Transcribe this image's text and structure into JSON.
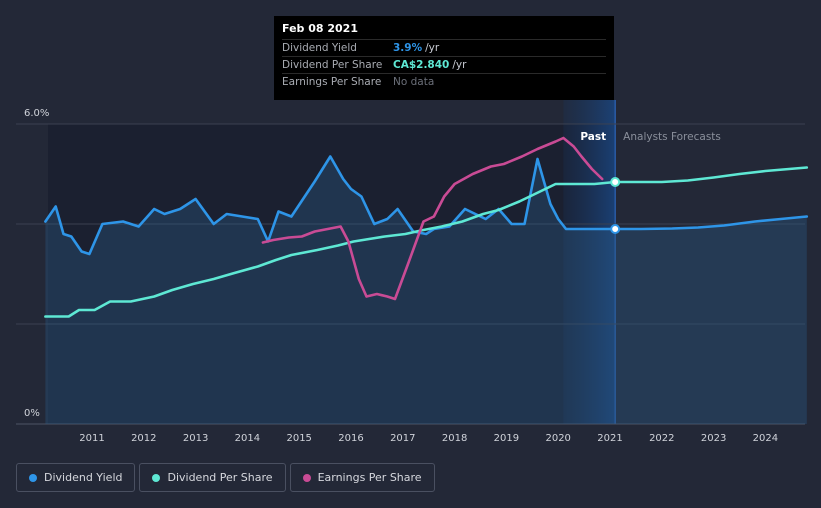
{
  "tooltip": {
    "date": "Feb 08 2021",
    "rows": [
      {
        "label": "Dividend Yield",
        "value": "3.9%",
        "unit": "/yr",
        "color": "#2e95e8"
      },
      {
        "label": "Dividend Per Share",
        "value": "CA$2.840",
        "unit": "/yr",
        "color": "#5ee8d4"
      },
      {
        "label": "Earnings Per Share",
        "value": "No data",
        "unit": "",
        "color": "#6b6f79"
      }
    ]
  },
  "region_labels": {
    "past": "Past",
    "forecast": "Analysts Forecasts"
  },
  "legend": [
    {
      "label": "Dividend Yield",
      "color": "#2e95e8"
    },
    {
      "label": "Dividend Per Share",
      "color": "#5ee8d4"
    },
    {
      "label": "Earnings Per Share",
      "color": "#c94b95"
    }
  ],
  "chart_data": {
    "type": "line",
    "y_tick_labels": [
      "6.0%",
      "0%"
    ],
    "ylim_pct": [
      0,
      6
    ],
    "xlim": [
      2010.1,
      2024.8
    ],
    "x_tick_labels": [
      "2011",
      "2012",
      "2013",
      "2014",
      "2015",
      "2016",
      "2017",
      "2018",
      "2019",
      "2020",
      "2021",
      "2022",
      "2023",
      "2024"
    ],
    "grid": true,
    "current_date": 2021.1,
    "past_highlight_start": 2020.1,
    "series": [
      {
        "name": "Dividend Yield",
        "color": "#2e95e8",
        "unit": "percent",
        "x": [
          2010.1,
          2010.3,
          2010.45,
          2010.6,
          2010.8,
          2010.95,
          2011.2,
          2011.6,
          2011.9,
          2012.2,
          2012.4,
          2012.7,
          2013.0,
          2013.35,
          2013.6,
          2013.9,
          2014.2,
          2014.4,
          2014.6,
          2014.85,
          2015.3,
          2015.6,
          2015.85,
          2016.0,
          2016.2,
          2016.45,
          2016.7,
          2016.9,
          2017.2,
          2017.45,
          2017.6,
          2017.9,
          2018.2,
          2018.6,
          2018.85,
          2019.1,
          2019.35,
          2019.6,
          2019.85,
          2020.0,
          2020.15,
          2020.35,
          2020.6,
          2020.85,
          2021.1,
          2021.6,
          2022.2,
          2022.7,
          2023.2,
          2023.8,
          2024.3,
          2024.8
        ],
        "values": [
          4.05,
          4.35,
          3.8,
          3.75,
          3.45,
          3.4,
          4.0,
          4.05,
          3.95,
          4.3,
          4.2,
          4.3,
          4.5,
          4.0,
          4.2,
          4.15,
          4.1,
          3.65,
          4.25,
          4.15,
          4.85,
          5.35,
          4.9,
          4.7,
          4.55,
          4.0,
          4.1,
          4.3,
          3.85,
          3.8,
          3.9,
          3.95,
          4.3,
          4.1,
          4.3,
          4.0,
          4.0,
          5.3,
          4.4,
          4.1,
          3.9,
          3.9,
          3.9,
          3.9,
          3.9,
          3.9,
          3.91,
          3.93,
          3.97,
          4.05,
          4.1,
          4.15
        ]
      },
      {
        "name": "Dividend Per Share",
        "color": "#5ee8d4",
        "unit": "relative",
        "x": [
          2010.1,
          2010.55,
          2010.75,
          2011.05,
          2011.35,
          2011.75,
          2012.2,
          2012.55,
          2012.95,
          2013.35,
          2013.75,
          2014.2,
          2014.55,
          2014.85,
          2015.35,
          2015.75,
          2016.05,
          2016.35,
          2016.65,
          2017.05,
          2017.35,
          2017.75,
          2018.15,
          2018.55,
          2018.85,
          2019.25,
          2019.55,
          2019.95,
          2020.3,
          2020.7,
          2021.1,
          2021.6,
          2022.0,
          2022.5,
          2023.0,
          2023.5,
          2024.0,
          2024.8
        ],
        "values": [
          2.15,
          2.15,
          2.28,
          2.28,
          2.45,
          2.45,
          2.55,
          2.68,
          2.8,
          2.9,
          3.02,
          3.15,
          3.28,
          3.38,
          3.48,
          3.57,
          3.65,
          3.7,
          3.75,
          3.8,
          3.87,
          3.95,
          4.05,
          4.2,
          4.28,
          4.45,
          4.6,
          4.8,
          4.8,
          4.8,
          4.84,
          4.84,
          4.84,
          4.87,
          4.93,
          5.0,
          5.06,
          5.13
        ]
      },
      {
        "name": "Earnings Per Share",
        "color": "#c94b95",
        "unit": "relative",
        "x": [
          2014.3,
          2014.5,
          2014.8,
          2015.05,
          2015.3,
          2015.55,
          2015.8,
          2015.95,
          2016.15,
          2016.3,
          2016.5,
          2016.7,
          2016.85,
          2017.1,
          2017.4,
          2017.6,
          2017.8,
          2018.0,
          2018.35,
          2018.7,
          2018.95,
          2019.3,
          2019.6,
          2019.95,
          2020.1,
          2020.3,
          2020.45,
          2020.65,
          2020.85
        ],
        "values": [
          3.63,
          3.68,
          3.73,
          3.75,
          3.85,
          3.9,
          3.95,
          3.65,
          2.9,
          2.55,
          2.6,
          2.55,
          2.5,
          3.2,
          4.05,
          4.15,
          4.55,
          4.8,
          5.0,
          5.15,
          5.2,
          5.35,
          5.5,
          5.65,
          5.72,
          5.55,
          5.35,
          5.1,
          4.9
        ]
      }
    ]
  }
}
